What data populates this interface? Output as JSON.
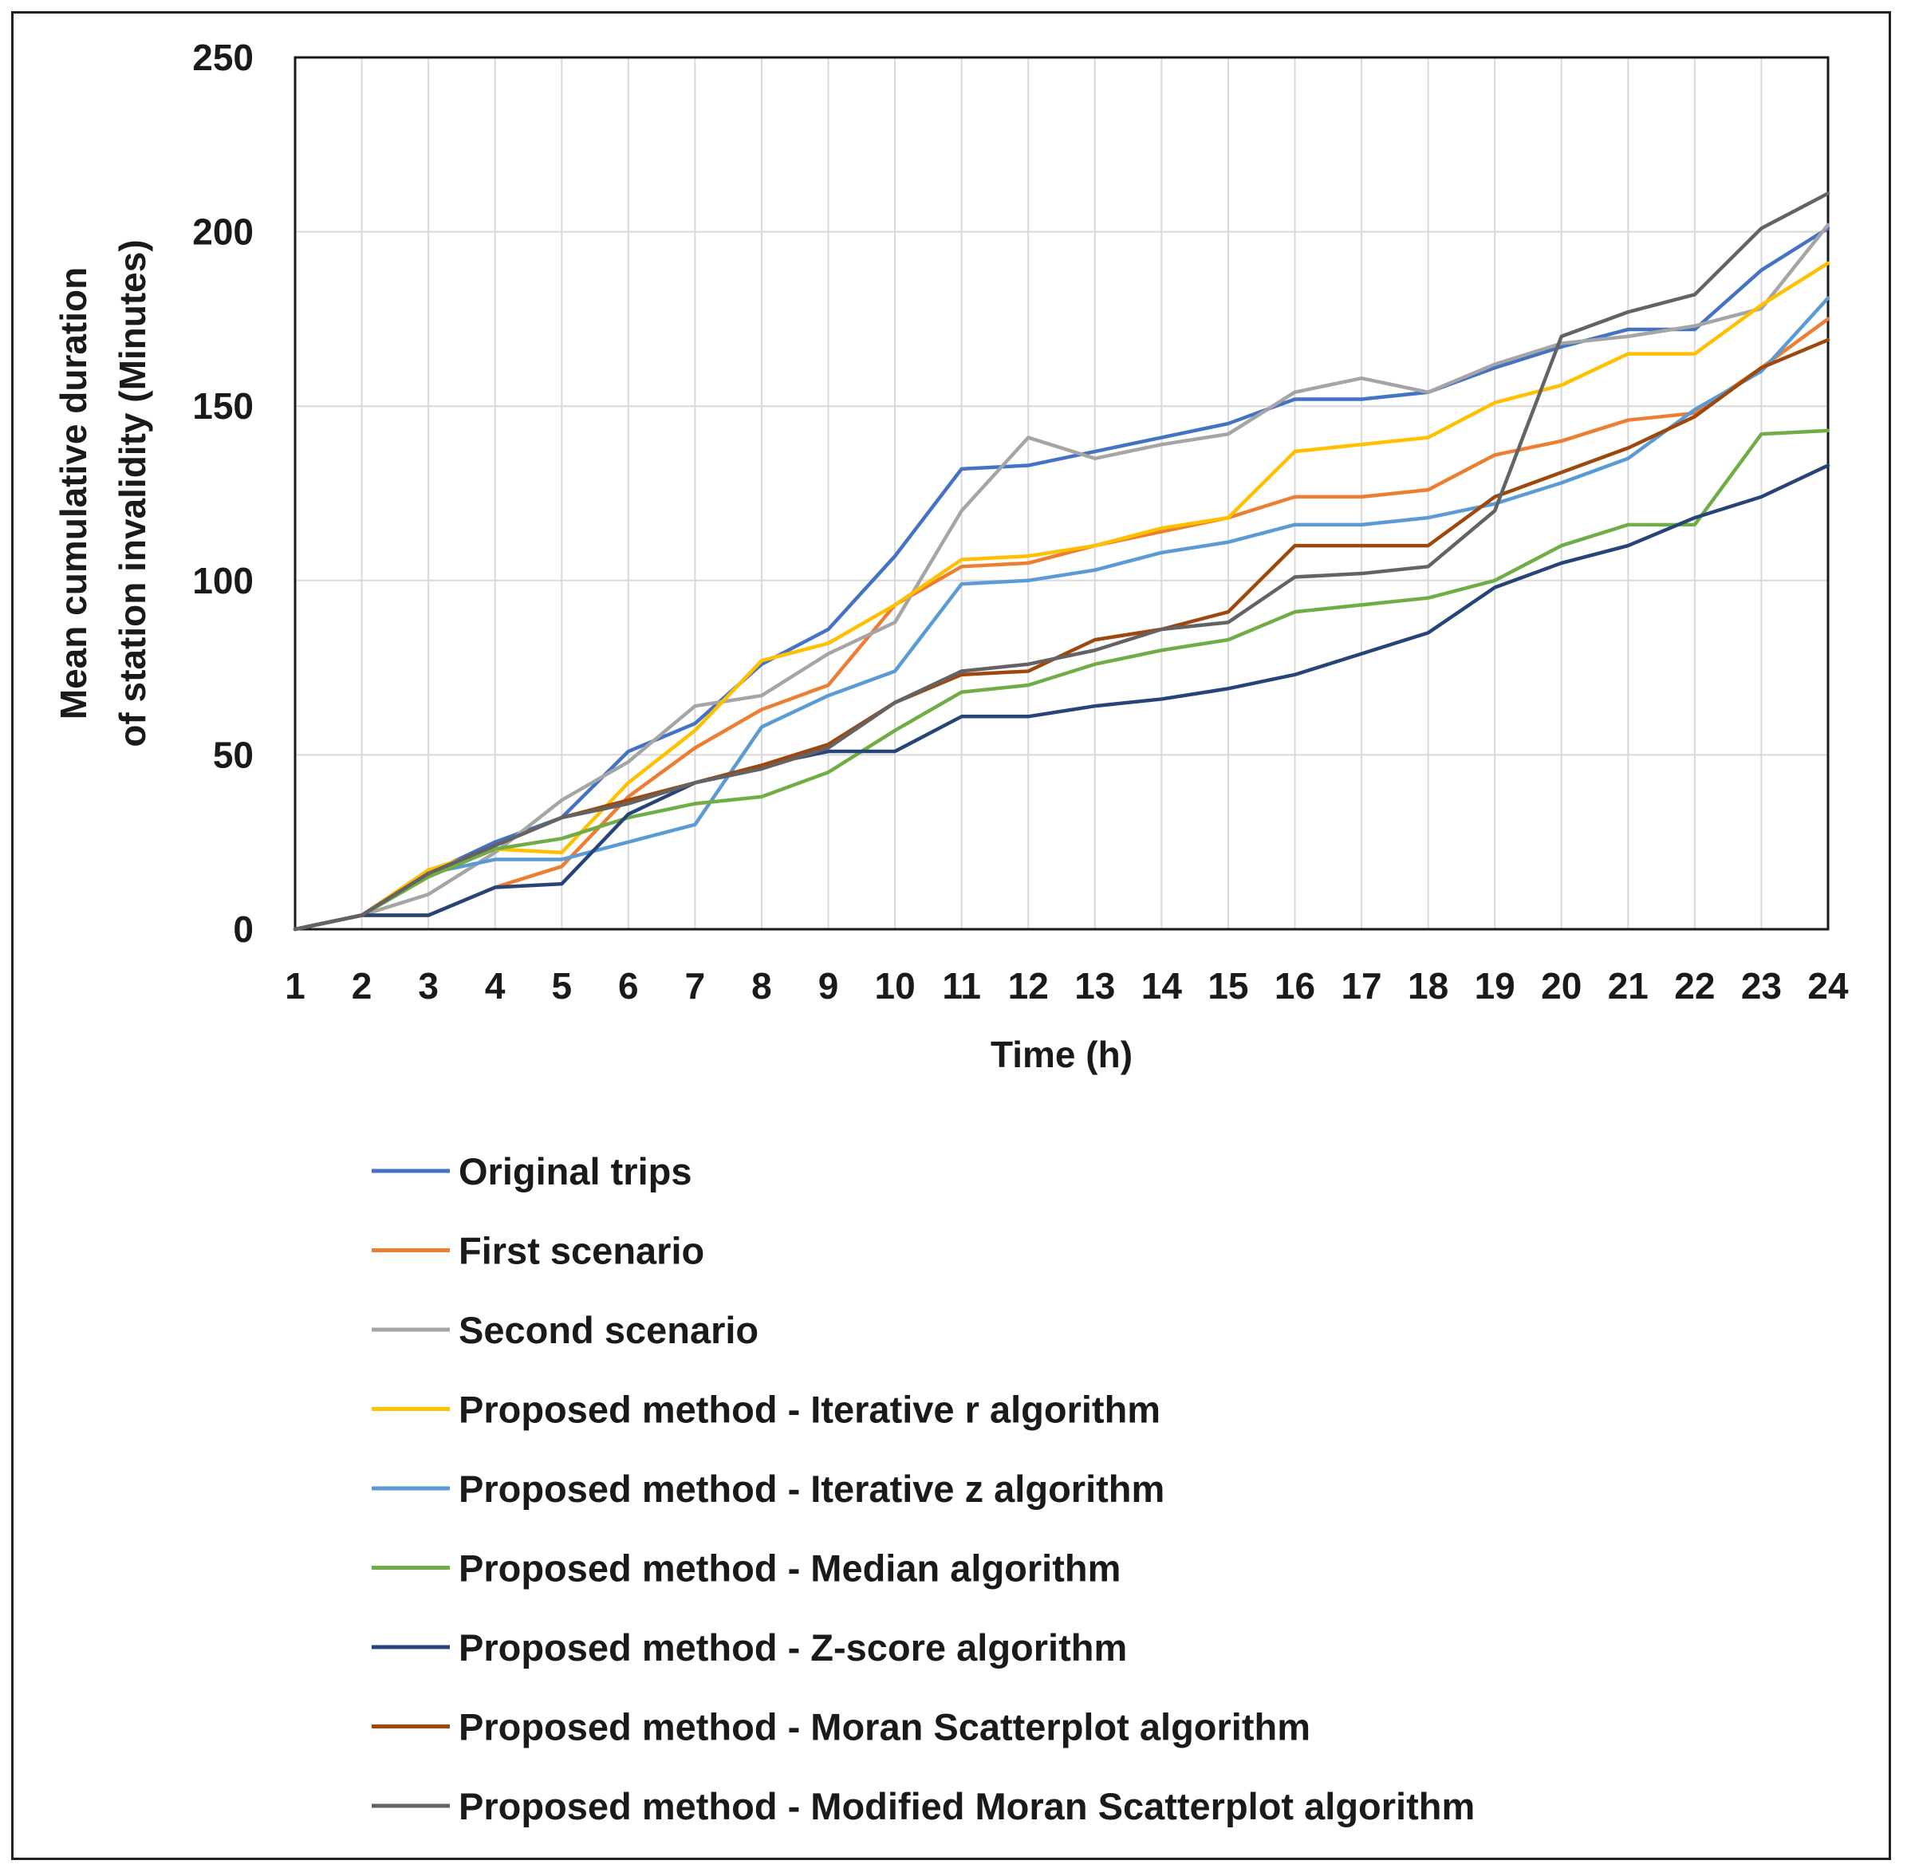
{
  "chart_data": {
    "type": "line",
    "title": "",
    "xlabel": "Time (h)",
    "ylabel_line1": "Mean cumulative duration",
    "ylabel_line2": "of station invalidity (Minutes)",
    "ylim": [
      0,
      250
    ],
    "yticks": [
      0,
      50,
      100,
      150,
      200,
      250
    ],
    "grid": true,
    "legend_position": "bottom",
    "x": [
      1,
      2,
      3,
      4,
      5,
      6,
      7,
      8,
      9,
      10,
      11,
      12,
      13,
      14,
      15,
      16,
      17,
      18,
      19,
      20,
      21,
      22,
      23,
      24
    ],
    "series": [
      {
        "name": "Original trips",
        "color": "#4472C4",
        "values": [
          0,
          4,
          16,
          25,
          32,
          51,
          59,
          76,
          86,
          107,
          132,
          133,
          137,
          141,
          145,
          152,
          152,
          154,
          161,
          167,
          172,
          172,
          189,
          201
        ]
      },
      {
        "name": "First scenario",
        "color": "#ED7D31",
        "values": [
          0,
          4,
          4,
          12,
          18,
          38,
          52,
          63,
          70,
          93,
          104,
          105,
          110,
          114,
          118,
          124,
          124,
          126,
          136,
          140,
          146,
          148,
          161,
          175
        ]
      },
      {
        "name": "Second scenario",
        "color": "#A5A5A5",
        "values": [
          0,
          4,
          10,
          22,
          37,
          48,
          64,
          67,
          79,
          88,
          120,
          141,
          135,
          139,
          142,
          154,
          158,
          154,
          162,
          168,
          170,
          173,
          178,
          202
        ]
      },
      {
        "name": "Proposed method - Iterative r algorithm",
        "color": "#FFC000",
        "values": [
          0,
          4,
          17,
          23,
          22,
          42,
          57,
          77,
          82,
          93,
          106,
          107,
          110,
          115,
          118,
          137,
          139,
          141,
          151,
          156,
          165,
          165,
          179,
          191
        ]
      },
      {
        "name": "Proposed method - Iterative z algorithm",
        "color": "#5B9BD5",
        "values": [
          0,
          4,
          16,
          20,
          20,
          25,
          30,
          58,
          67,
          74,
          99,
          100,
          103,
          108,
          111,
          116,
          116,
          118,
          122,
          128,
          135,
          149,
          160,
          181
        ]
      },
      {
        "name": "Proposed method - Median algorithm",
        "color": "#70AD47",
        "values": [
          0,
          4,
          15,
          23,
          26,
          32,
          36,
          38,
          45,
          57,
          68,
          70,
          76,
          80,
          83,
          91,
          93,
          95,
          100,
          110,
          116,
          116,
          142,
          143
        ]
      },
      {
        "name": "Proposed method - Z-score algorithm",
        "color": "#264478",
        "values": [
          0,
          4,
          4,
          12,
          13,
          33,
          42,
          47,
          51,
          51,
          61,
          61,
          64,
          66,
          69,
          73,
          79,
          85,
          98,
          105,
          110,
          118,
          124,
          133
        ]
      },
      {
        "name": "Proposed method - Moran Scatterplot algorithm",
        "color": "#9E480E",
        "values": [
          0,
          4,
          16,
          24,
          32,
          37,
          42,
          47,
          53,
          65,
          73,
          74,
          83,
          86,
          91,
          110,
          110,
          110,
          124,
          131,
          138,
          147,
          161,
          169
        ]
      },
      {
        "name": "Proposed method - Modified Moran Scatterplot algorithm",
        "color": "#636363",
        "values": [
          0,
          4,
          16,
          24,
          32,
          36,
          42,
          46,
          52,
          65,
          74,
          76,
          80,
          86,
          88,
          101,
          102,
          104,
          120,
          170,
          177,
          182,
          201,
          211
        ]
      }
    ]
  }
}
